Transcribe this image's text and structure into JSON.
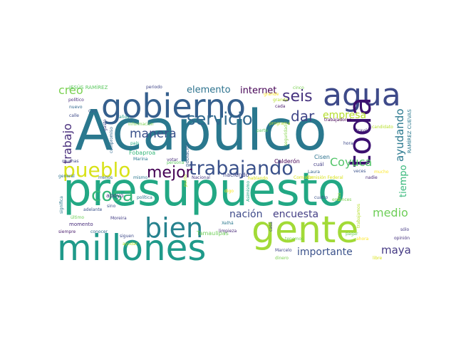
{
  "words": [
    {
      "text": "Acapulco",
      "color": "#2a788e"
    },
    {
      "text": "presupuesto",
      "color": "#22a884"
    },
    {
      "text": "gente",
      "color": "#a2da37"
    },
    {
      "text": "millones",
      "color": "#1f9a8a"
    },
    {
      "text": "agua",
      "color": "#3e4a89"
    },
    {
      "text": "gobierno",
      "color": "#355f8d"
    },
    {
      "text": "toda",
      "color": "#3b0f6f"
    },
    {
      "text": "bien",
      "color": "#26828e"
    },
    {
      "text": "pueblo",
      "color": "#d8e219"
    },
    {
      "text": "trabajando",
      "color": "#3b528b"
    },
    {
      "text": "cosa",
      "color": "#35b779"
    },
    {
      "text": "servicio",
      "color": "#31688e"
    },
    {
      "text": "mejor",
      "color": "#440154"
    },
    {
      "text": "seis",
      "color": "#46327e"
    },
    {
      "text": "dar",
      "color": "#404688"
    },
    {
      "text": "manera",
      "color": "#3b528b"
    },
    {
      "text": "trabajo",
      "color": "#472d7b"
    },
    {
      "text": "creo",
      "color": "#7ad151"
    },
    {
      "text": "elemento",
      "color": "#2c728e"
    },
    {
      "text": "internet",
      "color": "#440154"
    },
    {
      "text": "empresa",
      "color": "#b5de2b"
    },
    {
      "text": "ayudando",
      "color": "#2a788e"
    },
    {
      "text": "Coyuca",
      "color": "#52c569"
    },
    {
      "text": "tiempo",
      "color": "#35b779"
    },
    {
      "text": "nación",
      "color": "#3e4a89"
    },
    {
      "text": "encuesta",
      "color": "#433e85"
    },
    {
      "text": "medio",
      "color": "#6ece58"
    },
    {
      "text": "importante",
      "color": "#3b528b"
    },
    {
      "text": "maya",
      "color": "#443983"
    },
    {
      "text": "JESÚS RAMÍREZ",
      "color": "#5ec962"
    },
    {
      "text": "RAMÍREZ CUEVAS",
      "color": "#2a788e"
    },
    {
      "text": "haciendo",
      "color": "#404688"
    },
    {
      "text": "apoyo",
      "color": "#443983"
    },
    {
      "text": "Fobaproa",
      "color": "#35b779"
    },
    {
      "text": "Cisen",
      "color": "#2c728e"
    },
    {
      "text": "Tamaulipas",
      "color": "#6ece58"
    },
    {
      "text": "periodo",
      "color": "#404688"
    },
    {
      "text": "cinco",
      "color": "#7ad151"
    },
    {
      "text": "trabajadores",
      "color": "#440154"
    },
    {
      "text": "candidato",
      "color": "#b5de2b"
    },
    {
      "text": "político",
      "color": "#472d7b"
    },
    {
      "text": "nuevo",
      "color": "#31688e"
    },
    {
      "text": "calle",
      "color": "#3e4a89"
    },
    {
      "text": "Ciro",
      "color": "#38598c"
    },
    {
      "text": "años",
      "color": "#1f9e89"
    },
    {
      "text": "información",
      "color": "#7ad151"
    },
    {
      "text": "país",
      "color": "#22a884"
    },
    {
      "text": "población",
      "color": "#355f8d"
    },
    {
      "text": "Calderón",
      "color": "#440154"
    },
    {
      "text": "cuál",
      "color": "#433e85"
    },
    {
      "text": "Laura",
      "color": "#33638d"
    },
    {
      "text": "hora",
      "color": "#3e4989"
    },
    {
      "text": "programa",
      "color": "#b5de2b"
    },
    {
      "text": "grande",
      "color": "#fde725"
    },
    {
      "text": "cada",
      "color": "#481a6c"
    },
    {
      "text": "seguridad",
      "color": "#84d44b"
    },
    {
      "text": "parte",
      "color": "#5ec962"
    },
    {
      "text": "muchas",
      "color": "#404688"
    },
    {
      "text": "Marina",
      "color": "#2a788e"
    },
    {
      "text": "persona",
      "color": "#5ec962"
    },
    {
      "text": "general",
      "color": "#2c728e"
    },
    {
      "text": "menos",
      "color": "#31688e"
    },
    {
      "text": "mismo",
      "color": "#2a788e"
    },
    {
      "text": "Nacional",
      "color": "#443983"
    },
    {
      "text": "votar",
      "color": "#472d7b"
    },
    {
      "text": "punto",
      "color": "#b5de2b"
    },
    {
      "text": "Comisión Federal",
      "color": "#d8e219"
    },
    {
      "text": "veces",
      "color": "#3b528b"
    },
    {
      "text": "nadie",
      "color": "#482878"
    },
    {
      "text": "cuatro",
      "color": "#3b528b"
    },
    {
      "text": "través",
      "color": "#472d7b"
    },
    {
      "text": "pagar",
      "color": "#6ece58"
    },
    {
      "text": "sólo",
      "color": "#443983"
    },
    {
      "text": "opinión",
      "color": "#46327e"
    },
    {
      "text": "significa",
      "color": "#2a788e"
    },
    {
      "text": "adelante",
      "color": "#3b528b"
    },
    {
      "text": "momento",
      "color": "#472d7b"
    },
    {
      "text": "siempre",
      "color": "#481a6c"
    },
    {
      "text": "conocer",
      "color": "#31688e"
    },
    {
      "text": "siguen",
      "color": "#3e4a89"
    },
    {
      "text": "limpieza",
      "color": "#482878"
    },
    {
      "text": "Xelhá",
      "color": "#2a788e"
    },
    {
      "text": "Moreira",
      "color": "#433e85"
    },
    {
      "text": "último",
      "color": "#6ece58"
    },
    {
      "text": "ayudar",
      "color": "#b5de2b"
    },
    {
      "text": "Marcelo",
      "color": "#404688"
    },
    {
      "text": "dinero",
      "color": "#7ad151"
    },
    {
      "text": "libre",
      "color": "#d8e219"
    },
    {
      "text": "política",
      "color": "#2c728e"
    },
    {
      "text": "sino",
      "color": "#3b528b"
    },
    {
      "text": "compromiso",
      "color": "#31688e"
    },
    {
      "text": "gasto",
      "color": "#404688"
    },
    {
      "text": "digo",
      "color": "#fde725"
    },
    {
      "text": "Asimismo",
      "color": "#22a884"
    },
    {
      "text": "tenemos",
      "color": "#7ad151"
    },
    {
      "text": "hablando",
      "color": "#d8e219"
    },
    {
      "text": "casa",
      "color": "#3e4a89"
    },
    {
      "text": "grande",
      "color": "#b5de2b"
    },
    {
      "text": "entonces",
      "color": "#7ad151"
    },
    {
      "text": "mucho",
      "color": "#fde725"
    },
    {
      "text": "tres",
      "color": "#b5de2b"
    },
    {
      "text": "trabajamos",
      "color": "#b5de2b"
    },
    {
      "text": "ahora",
      "color": "#fde725"
    },
    {
      "text": "Comisión",
      "color": "#d8e219"
    }
  ]
}
